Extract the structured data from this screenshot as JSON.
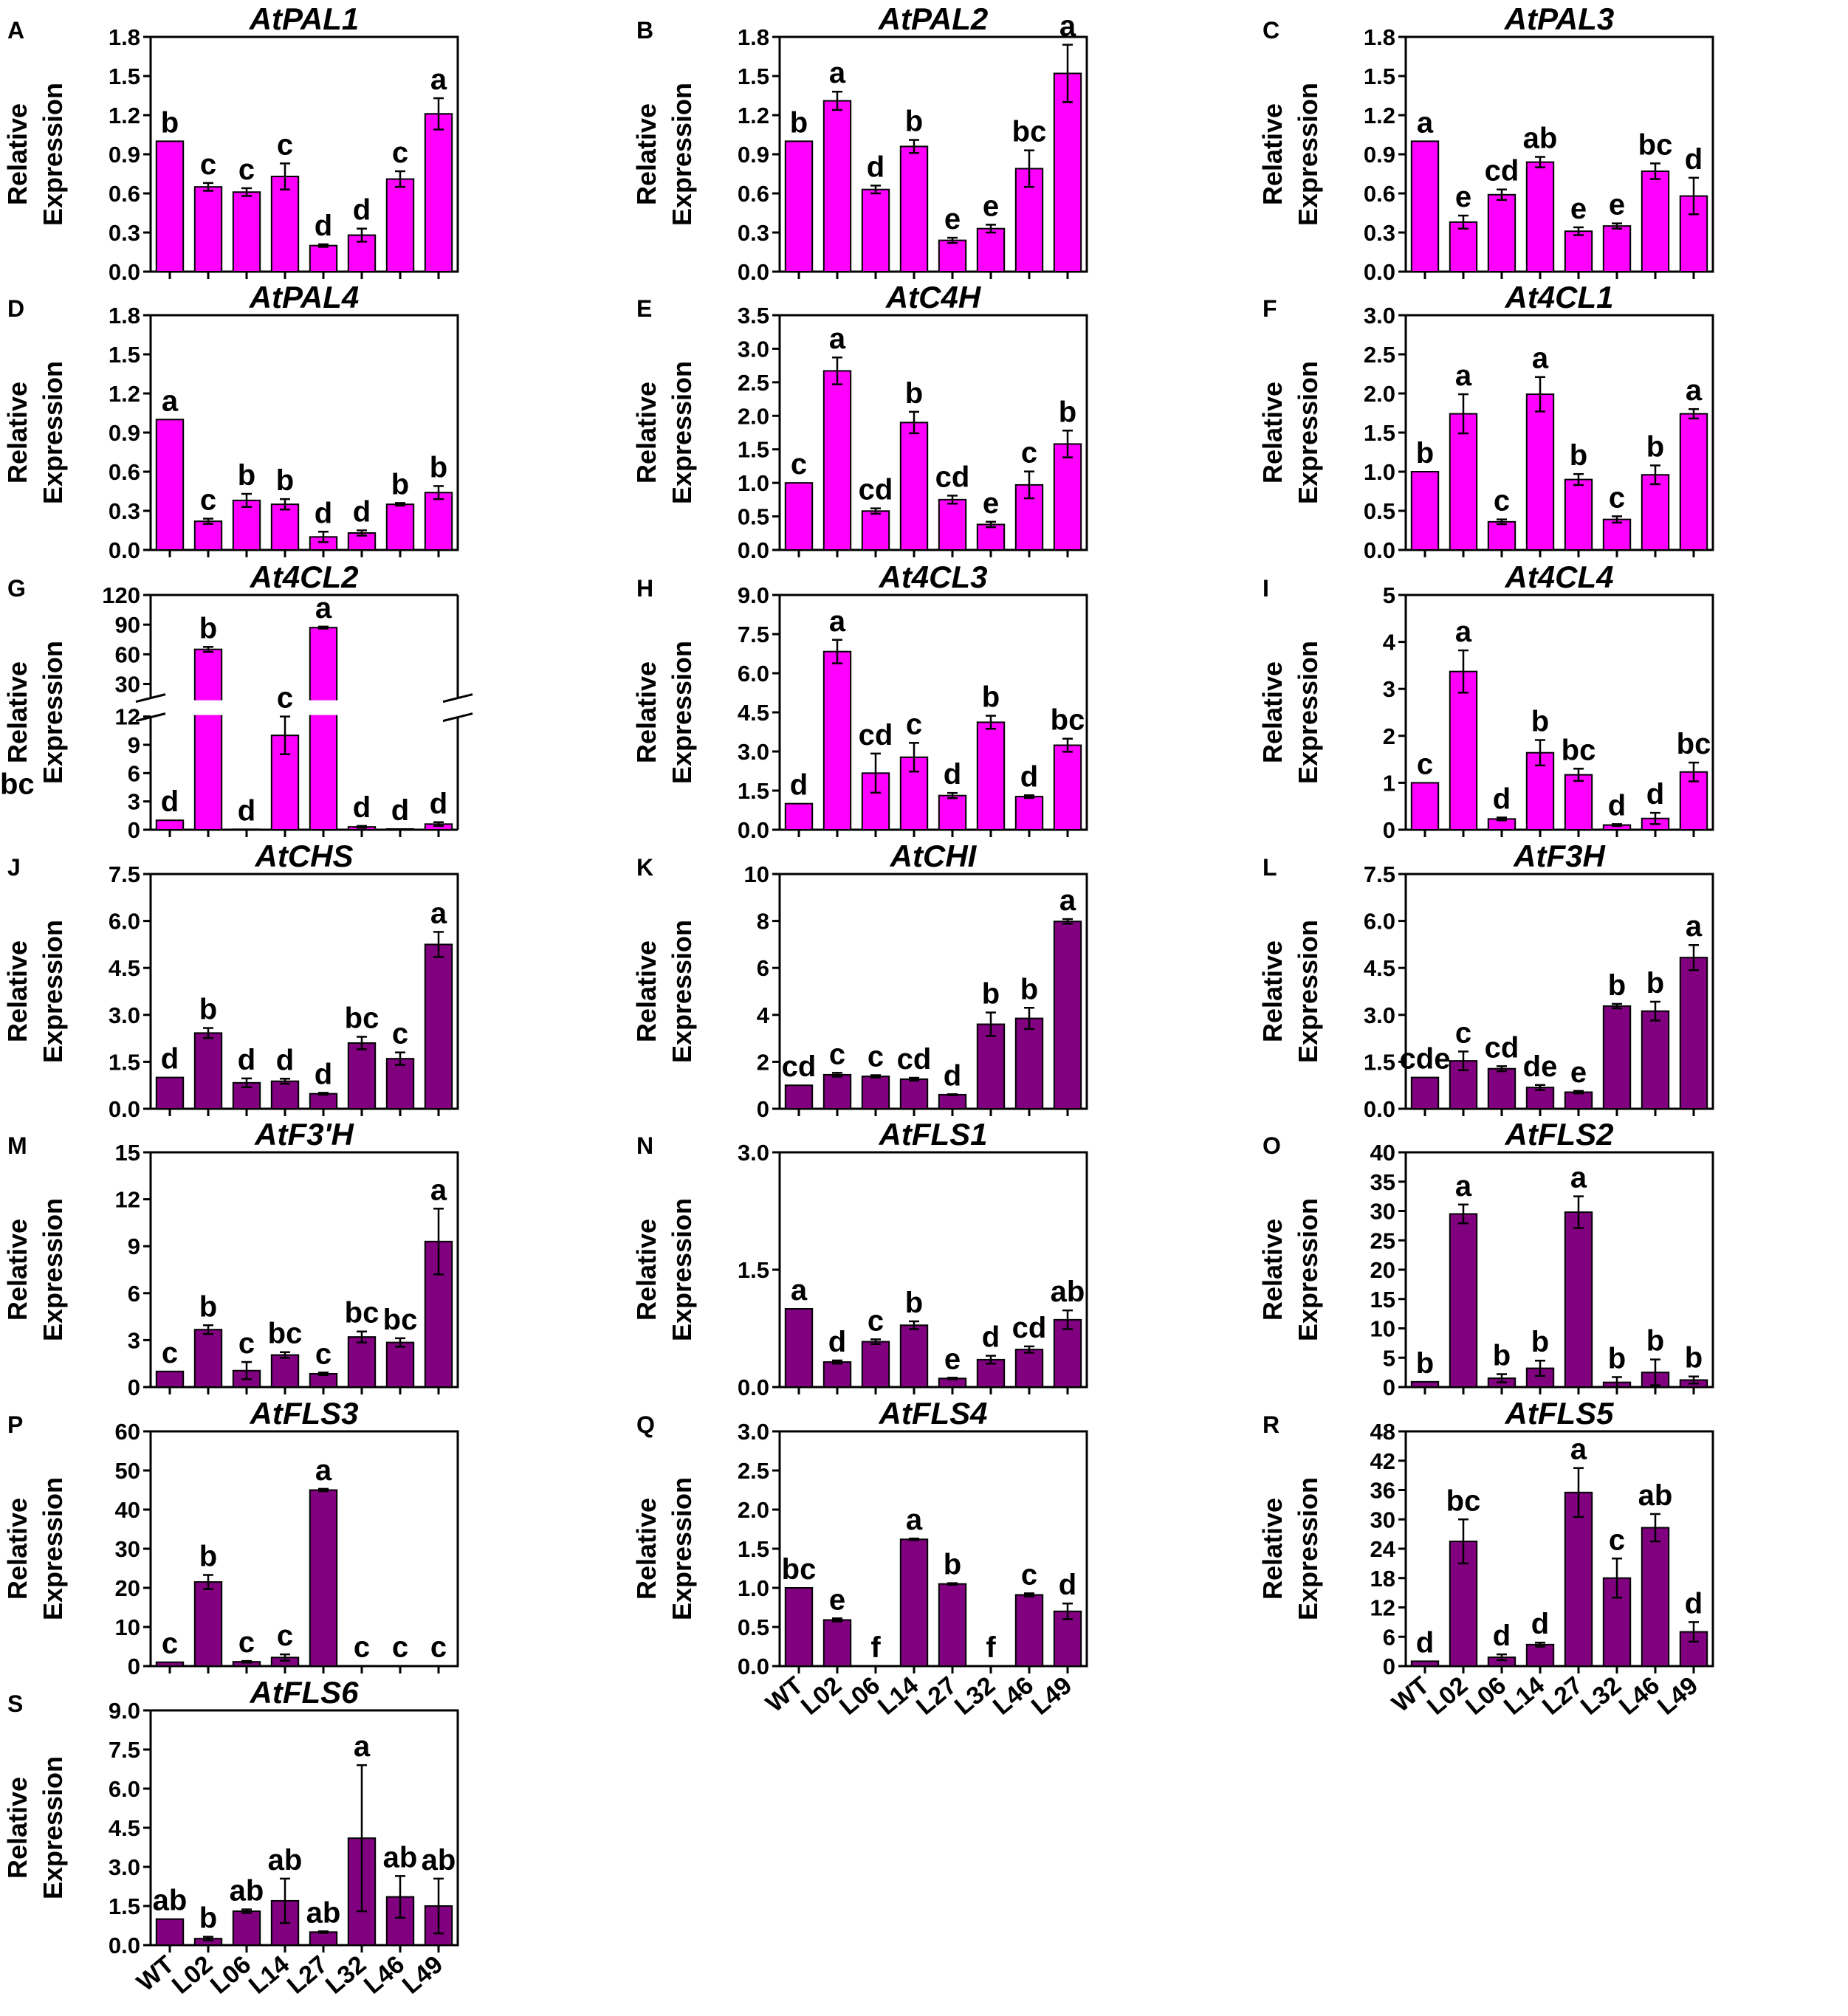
{
  "colors": {
    "pink": "#ff00ff",
    "purple": "#800080",
    "axis": "#000000"
  },
  "ylabel_lines": [
    "Relative",
    "Expression"
  ],
  "categories": [
    "WT",
    "L02",
    "L06",
    "L14",
    "L27",
    "L32",
    "L46",
    "L49"
  ],
  "chart_data": [
    {
      "letter": "A",
      "type": "bar",
      "title": "AtPAL1",
      "color": "pink",
      "ylim": [
        0,
        1.8
      ],
      "yticks": [
        "0.0",
        "0.3",
        "0.6",
        "0.9",
        "1.2",
        "1.5",
        "1.8"
      ],
      "values": [
        1.0,
        0.65,
        0.61,
        0.73,
        0.2,
        0.28,
        0.71,
        1.21
      ],
      "errors": [
        0,
        0.03,
        0.03,
        0.1,
        0.01,
        0.05,
        0.06,
        0.12
      ],
      "labels": [
        "b",
        "c",
        "c",
        "c",
        "d",
        "d",
        "c",
        "a"
      ],
      "xticklabels": false
    },
    {
      "letter": "B",
      "type": "bar",
      "title": "AtPAL2",
      "color": "pink",
      "ylim": [
        0,
        1.8
      ],
      "yticks": [
        "0.0",
        "0.3",
        "0.6",
        "0.9",
        "1.2",
        "1.5",
        "1.8"
      ],
      "values": [
        1.0,
        1.31,
        0.63,
        0.96,
        0.24,
        0.33,
        0.79,
        1.52
      ],
      "errors": [
        0,
        0.07,
        0.03,
        0.05,
        0.02,
        0.03,
        0.14,
        0.22
      ],
      "labels": [
        "b",
        "a",
        "d",
        "b",
        "e",
        "e",
        "bc",
        "a"
      ],
      "xticklabels": false
    },
    {
      "letter": "C",
      "type": "bar",
      "title": "AtPAL3",
      "color": "pink",
      "ylim": [
        0,
        1.8
      ],
      "yticks": [
        "0.0",
        "0.3",
        "0.6",
        "0.9",
        "1.2",
        "1.5",
        "1.8"
      ],
      "values": [
        1.0,
        0.38,
        0.59,
        0.84,
        0.31,
        0.35,
        0.77,
        0.58
      ],
      "errors": [
        0,
        0.05,
        0.04,
        0.04,
        0.03,
        0.02,
        0.06,
        0.14
      ],
      "labels": [
        "a",
        "e",
        "cd",
        "ab",
        "e",
        "e",
        "bc",
        "d"
      ],
      "xticklabels": false
    },
    {
      "letter": "D",
      "type": "bar",
      "title": "AtPAL4",
      "color": "pink",
      "ylim": [
        0,
        1.8
      ],
      "yticks": [
        "0.0",
        "0.3",
        "0.6",
        "0.9",
        "1.2",
        "1.5",
        "1.8"
      ],
      "values": [
        1.0,
        0.22,
        0.38,
        0.35,
        0.1,
        0.13,
        0.35,
        0.44
      ],
      "errors": [
        0,
        0.02,
        0.05,
        0.04,
        0.04,
        0.02,
        0.01,
        0.05
      ],
      "labels": [
        "a",
        "c",
        "b",
        "b",
        "d",
        "d",
        "b",
        "b"
      ],
      "xticklabels": false
    },
    {
      "letter": "E",
      "type": "bar",
      "title": "AtC4H",
      "color": "pink",
      "ylim": [
        0,
        3.5
      ],
      "yticks": [
        "0.0",
        "0.5",
        "1.0",
        "1.5",
        "2.0",
        "2.5",
        "3.0",
        "3.5"
      ],
      "values": [
        1.0,
        2.67,
        0.58,
        1.9,
        0.75,
        0.38,
        0.97,
        1.58
      ],
      "errors": [
        0,
        0.2,
        0.04,
        0.16,
        0.06,
        0.04,
        0.2,
        0.2
      ],
      "labels": [
        "c",
        "a",
        "cd",
        "b",
        "cd",
        "e",
        "c",
        "b"
      ],
      "xticklabels": false
    },
    {
      "letter": "F",
      "type": "bar",
      "title": "At4CL1",
      "color": "pink",
      "ylim": [
        0,
        3.0
      ],
      "yticks": [
        "0.0",
        "0.5",
        "1.0",
        "1.5",
        "2.0",
        "2.5",
        "3.0"
      ],
      "values": [
        1.0,
        1.74,
        0.36,
        1.99,
        0.9,
        0.39,
        0.96,
        1.74
      ],
      "errors": [
        0,
        0.25,
        0.03,
        0.22,
        0.07,
        0.04,
        0.12,
        0.06
      ],
      "labels": [
        "b",
        "a",
        "c",
        "a",
        "b",
        "c",
        "b",
        "a"
      ],
      "xticklabels": false
    },
    {
      "letter": "G",
      "type": "broken",
      "title": "At4CL2",
      "color": "pink",
      "lower_ylim": [
        0,
        12
      ],
      "lower_yticks": [
        "0",
        "3",
        "6",
        "9",
        "12"
      ],
      "upper_ylim": [
        15,
        120
      ],
      "upper_yticks": [
        "30",
        "60",
        "90",
        "120"
      ],
      "values": [
        1.0,
        65,
        0.05,
        10,
        87,
        0.3,
        0.08,
        0.6
      ],
      "errors": [
        0,
        2.5,
        0,
        2,
        1,
        0.1,
        0,
        0.2
      ],
      "labels": [
        "d",
        "b",
        "d",
        "c",
        "a",
        "d",
        "d",
        "d"
      ],
      "stray_label": "bc",
      "xticklabels": false
    },
    {
      "letter": "H",
      "type": "bar",
      "title": "At4CL3",
      "color": "pink",
      "ylim": [
        0,
        9.0
      ],
      "yticks": [
        "0.0",
        "1.5",
        "3.0",
        "4.5",
        "6.0",
        "7.5",
        "9.0"
      ],
      "values": [
        1.0,
        6.83,
        2.17,
        2.78,
        1.31,
        4.12,
        1.27,
        3.24
      ],
      "errors": [
        0,
        0.45,
        0.75,
        0.55,
        0.1,
        0.25,
        0.05,
        0.25
      ],
      "labels": [
        "d",
        "a",
        "cd",
        "c",
        "d",
        "b",
        "d",
        "bc"
      ],
      "xticklabels": false
    },
    {
      "letter": "I",
      "type": "bar",
      "title": "At4CL4",
      "color": "pink",
      "ylim": [
        0,
        5
      ],
      "yticks": [
        "0",
        "1",
        "2",
        "3",
        "4",
        "5"
      ],
      "values": [
        1.0,
        3.37,
        0.23,
        1.64,
        1.17,
        0.1,
        0.24,
        1.23
      ],
      "errors": [
        0,
        0.45,
        0.03,
        0.27,
        0.13,
        0.02,
        0.12,
        0.2
      ],
      "labels": [
        "c",
        "a",
        "d",
        "b",
        "bc",
        "d",
        "d",
        "bc"
      ],
      "xticklabels": false
    },
    {
      "letter": "J",
      "type": "bar",
      "title": "AtCHS",
      "color": "purple",
      "ylim": [
        0,
        7.5
      ],
      "yticks": [
        "0.0",
        "1.5",
        "3.0",
        "4.5",
        "6.0",
        "7.5"
      ],
      "values": [
        1.0,
        2.42,
        0.83,
        0.88,
        0.48,
        2.1,
        1.6,
        5.25
      ],
      "errors": [
        0,
        0.16,
        0.14,
        0.08,
        0.03,
        0.2,
        0.2,
        0.4
      ],
      "labels": [
        "d",
        "b",
        "d",
        "d",
        "d",
        "bc",
        "c",
        "a"
      ],
      "xticklabels": false
    },
    {
      "letter": "K",
      "type": "bar",
      "title": "AtCHI",
      "color": "purple",
      "ylim": [
        0,
        10
      ],
      "yticks": [
        "0",
        "2",
        "4",
        "6",
        "8",
        "10"
      ],
      "values": [
        1.0,
        1.45,
        1.38,
        1.26,
        0.6,
        3.6,
        3.85,
        7.98
      ],
      "errors": [
        0,
        0.08,
        0.05,
        0.06,
        0.02,
        0.5,
        0.45,
        0.1
      ],
      "labels": [
        "cd",
        "c",
        "c",
        "cd",
        "d",
        "b",
        "b",
        "a"
      ],
      "xticklabels": false
    },
    {
      "letter": "L",
      "type": "bar",
      "title": "AtF3H",
      "color": "purple",
      "ylim": [
        0,
        7.5
      ],
      "yticks": [
        "0.0",
        "1.5",
        "3.0",
        "4.5",
        "6.0",
        "7.5"
      ],
      "values": [
        1.0,
        1.53,
        1.28,
        0.68,
        0.53,
        3.28,
        3.12,
        4.83
      ],
      "errors": [
        0,
        0.3,
        0.08,
        0.08,
        0.04,
        0.07,
        0.3,
        0.4
      ],
      "labels": [
        "cde",
        "c",
        "cd",
        "de",
        "e",
        "b",
        "b",
        "a"
      ],
      "xticklabels": false
    },
    {
      "letter": "M",
      "type": "bar",
      "title": "AtF3'H",
      "color": "purple",
      "ylim": [
        0,
        15
      ],
      "yticks": [
        "0",
        "3",
        "6",
        "9",
        "12",
        "15"
      ],
      "values": [
        1.0,
        3.67,
        1.05,
        2.05,
        0.85,
        3.2,
        2.85,
        9.3
      ],
      "errors": [
        0,
        0.28,
        0.55,
        0.18,
        0.08,
        0.35,
        0.27,
        2.1
      ],
      "labels": [
        "c",
        "b",
        "c",
        "bc",
        "c",
        "bc",
        "bc",
        "a"
      ],
      "xticklabels": false
    },
    {
      "letter": "N",
      "type": "bar",
      "title": "AtFLS1",
      "color": "purple",
      "ylim": [
        0,
        3.0
      ],
      "yticks": [
        "0.0",
        "1.5",
        "3.0"
      ],
      "values": [
        1.0,
        0.32,
        0.58,
        0.79,
        0.11,
        0.35,
        0.48,
        0.86
      ],
      "errors": [
        0,
        0.02,
        0.03,
        0.05,
        0.01,
        0.05,
        0.04,
        0.12
      ],
      "labels": [
        "a",
        "d",
        "c",
        "b",
        "e",
        "d",
        "cd",
        "ab"
      ],
      "xticklabels": false
    },
    {
      "letter": "O",
      "type": "bar",
      "title": "AtFLS2",
      "color": "purple",
      "ylim": [
        0,
        40
      ],
      "yticks": [
        "0",
        "5",
        "10",
        "15",
        "20",
        "25",
        "30",
        "35",
        "40"
      ],
      "values": [
        0.9,
        29.5,
        1.5,
        3.2,
        29.8,
        0.8,
        2.5,
        1.2
      ],
      "errors": [
        0,
        1.6,
        0.7,
        1.3,
        2.7,
        0.9,
        2.2,
        0.6
      ],
      "labels": [
        "b",
        "a",
        "b",
        "b",
        "a",
        "b",
        "b",
        "b"
      ],
      "xticklabels": false
    },
    {
      "letter": "P",
      "type": "bar",
      "title": "AtFLS3",
      "color": "purple",
      "ylim": [
        0,
        60
      ],
      "yticks": [
        "0",
        "10",
        "20",
        "30",
        "40",
        "50",
        "60"
      ],
      "values": [
        1.0,
        21.5,
        1.1,
        2.2,
        45.0,
        0.1,
        0.05,
        0.05
      ],
      "errors": [
        0,
        1.8,
        0.2,
        0.8,
        0.3,
        0,
        0,
        0
      ],
      "labels": [
        "c",
        "b",
        "c",
        "c",
        "a",
        "c",
        "c",
        "c"
      ],
      "xticklabels": false
    },
    {
      "letter": "Q",
      "type": "bar",
      "title": "AtFLS4",
      "color": "purple",
      "ylim": [
        0,
        3.0
      ],
      "yticks": [
        "0.0",
        "0.5",
        "1.0",
        "1.5",
        "2.0",
        "2.5",
        "3.0"
      ],
      "values": [
        1.0,
        0.59,
        0,
        1.62,
        1.05,
        0,
        0.91,
        0.7
      ],
      "errors": [
        0,
        0.02,
        0,
        0.01,
        0.01,
        0,
        0.02,
        0.1
      ],
      "labels": [
        "bc",
        "e",
        "f",
        "a",
        "b",
        "f",
        "c",
        "d"
      ],
      "xticklabels": true
    },
    {
      "letter": "R",
      "type": "bar",
      "title": "AtFLS5",
      "color": "purple",
      "ylim": [
        0,
        48
      ],
      "yticks": [
        "0",
        "6",
        "12",
        "18",
        "24",
        "30",
        "36",
        "42",
        "48"
      ],
      "values": [
        1.0,
        25.5,
        1.8,
        4.4,
        35.5,
        18.0,
        28.3,
        7.0
      ],
      "errors": [
        0,
        4.5,
        0.6,
        0.4,
        5.0,
        4.0,
        2.8,
        2.0
      ],
      "labels": [
        "d",
        "bc",
        "d",
        "d",
        "a",
        "c",
        "ab",
        "d"
      ],
      "xticklabels": true
    },
    {
      "letter": "S",
      "type": "bar",
      "title": "AtFLS6",
      "color": "purple",
      "ylim": [
        0,
        9.0
      ],
      "yticks": [
        "0.0",
        "1.5",
        "3.0",
        "4.5",
        "6.0",
        "7.5",
        "9.0"
      ],
      "values": [
        1.0,
        0.25,
        1.3,
        1.7,
        0.5,
        4.1,
        1.85,
        1.5
      ],
      "errors": [
        0,
        0.07,
        0.07,
        0.85,
        0.03,
        2.8,
        0.8,
        1.05
      ],
      "labels": [
        "ab",
        "b",
        "ab",
        "ab",
        "ab",
        "a",
        "ab",
        "ab"
      ],
      "xticklabels": true
    }
  ]
}
